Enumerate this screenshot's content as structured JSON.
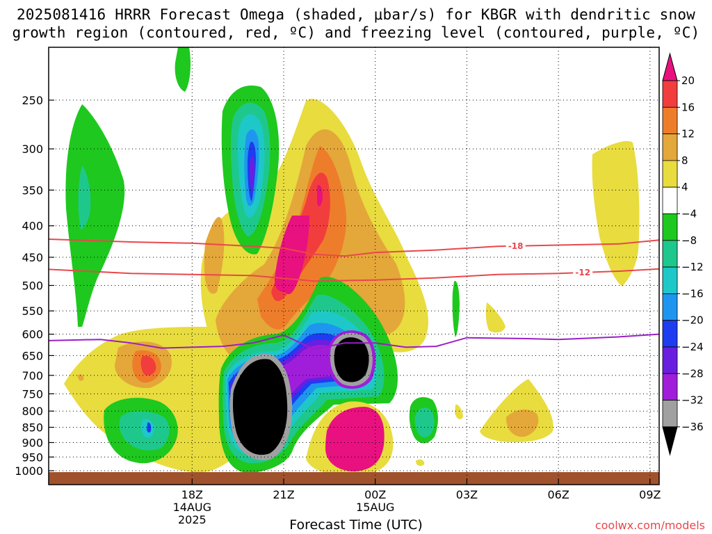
{
  "title_line1": "2025081416 HRRR Forecast Omega (shaded, μbar/s) for KBGR with dendritic snow",
  "title_line2": "growth region (contoured, red, ºC) and freezing level (contoured, purple, ºC)",
  "credit": "coolwx.com/models",
  "chart_data": {
    "type": "contour",
    "xlabel": "Forecast Time (UTC)",
    "ylabel": "",
    "y_axis": {
      "label": "",
      "log_scale": true,
      "range": [
        1000,
        200
      ],
      "ticks": [
        250,
        300,
        350,
        400,
        450,
        500,
        550,
        600,
        650,
        700,
        750,
        800,
        850,
        900,
        950,
        1000
      ]
    },
    "x_axis": {
      "range_hours": [
        -2.7,
        17.3
      ],
      "ticks": [
        {
          "hour": 2,
          "lines": [
            "18Z",
            "14AUG",
            "2025"
          ]
        },
        {
          "hour": 5,
          "lines": [
            "21Z"
          ]
        },
        {
          "hour": 8,
          "lines": [
            "00Z",
            "15AUG"
          ]
        },
        {
          "hour": 11,
          "lines": [
            "03Z"
          ]
        },
        {
          "hour": 14,
          "lines": [
            "06Z"
          ]
        },
        {
          "hour": 17,
          "lines": [
            "09Z"
          ]
        }
      ]
    },
    "grid": "dotted",
    "colorbar": {
      "labels": [
        "20",
        "16",
        "12",
        "8",
        "4",
        "−4",
        "−8",
        "−12",
        "−16",
        "−20",
        "−24",
        "−28",
        "−32",
        "−36"
      ],
      "colors_top_to_bottom": [
        "#e8117f",
        "#f23d3d",
        "#ee7d2b",
        "#e4a73a",
        "#e8dc3f",
        "#ffffff",
        "#1ec81e",
        "#1ec88c",
        "#1ec8c8",
        "#1e96f0",
        "#1e3cf0",
        "#6a1ee0",
        "#a01eda",
        "#a0a0a0",
        "#000000"
      ]
    },
    "contours": [
      {
        "name": "-18",
        "color": "#e8474b",
        "points": [
          [
            -3,
            420
          ],
          [
            0,
            425
          ],
          [
            2,
            427
          ],
          [
            4,
            432
          ],
          [
            5,
            435
          ],
          [
            6,
            445
          ],
          [
            7,
            448
          ],
          [
            8,
            442
          ],
          [
            10,
            438
          ],
          [
            12,
            432
          ],
          [
            14,
            430
          ],
          [
            16,
            428
          ],
          [
            17.3,
            422
          ]
        ]
      },
      {
        "name": "-12",
        "color": "#e8474b",
        "points": [
          [
            -3,
            470
          ],
          [
            0,
            478
          ],
          [
            2,
            480
          ],
          [
            4,
            482
          ],
          [
            6,
            492
          ],
          [
            8,
            490
          ],
          [
            10,
            486
          ],
          [
            12,
            480
          ],
          [
            14,
            478
          ],
          [
            16,
            474
          ],
          [
            17.3,
            470
          ]
        ]
      },
      {
        "name": "",
        "color": "#9a1ec8",
        "points": [
          [
            -3,
            615
          ],
          [
            -1,
            612
          ],
          [
            0,
            620
          ],
          [
            1,
            632
          ],
          [
            3,
            628
          ],
          [
            4,
            620
          ],
          [
            5,
            602
          ],
          [
            6,
            635
          ],
          [
            7,
            620
          ],
          [
            8,
            620
          ],
          [
            9,
            630
          ],
          [
            10,
            628
          ],
          [
            11,
            608
          ],
          [
            13,
            610
          ],
          [
            14,
            612
          ],
          [
            16,
            606
          ],
          [
            17.3,
            600
          ]
        ]
      }
    ],
    "ground_level_hPa": 1000
  }
}
